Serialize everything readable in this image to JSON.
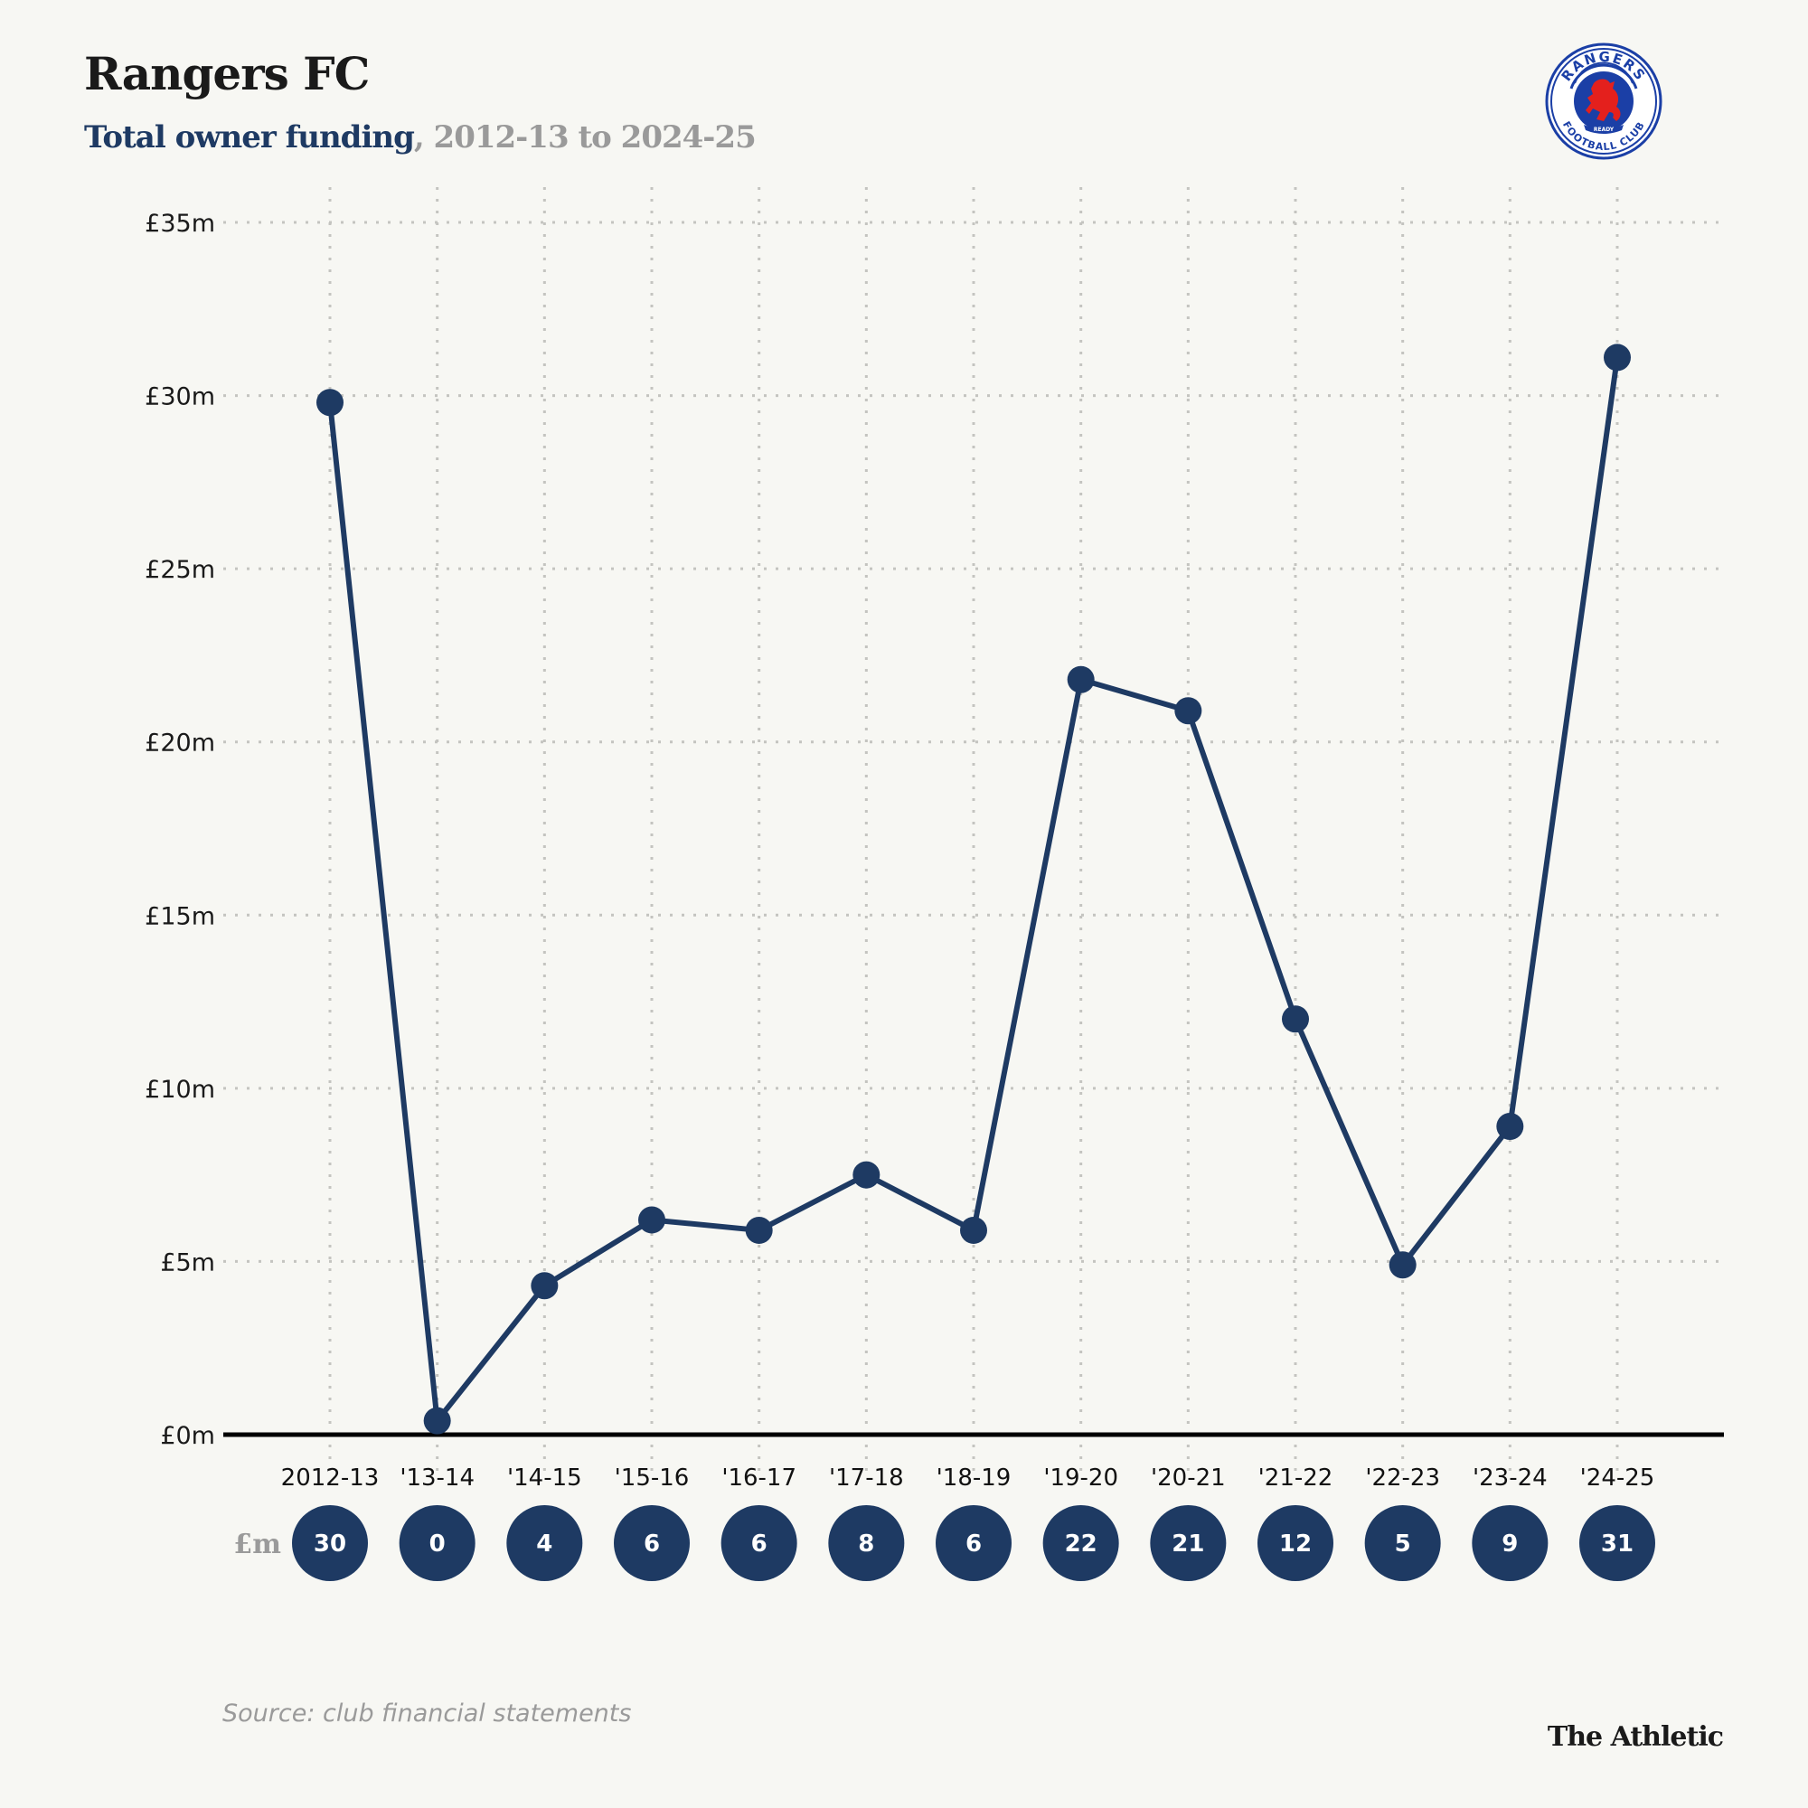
{
  "header": {
    "title": "Rangers FC",
    "subtitle_accent": "Total owner funding",
    "subtitle_comma": ",",
    "subtitle_range": " 2012-13 to 2024-25",
    "crest": {
      "label": "Rangers Football Club crest",
      "text_top": "RANGERS",
      "text_bottom": "FOOTBALL CLUB",
      "motto": "READY"
    }
  },
  "colors": {
    "line": "#1e3a63",
    "bubble": "#1e3a63",
    "grid": "#c4c4c0",
    "baseline": "#000000",
    "crest_blue": "#1b3fa6",
    "crest_red": "#e4201d"
  },
  "chart_data": {
    "type": "line",
    "title": "Total owner funding, 2012-13 to 2024-25",
    "xlabel": "",
    "ylabel": "",
    "categories": [
      "2012-13",
      "'13-14",
      "'14-15",
      "'15-16",
      "'16-17",
      "'17-18",
      "'18-19",
      "'19-20",
      "'20-21",
      "'21-22",
      "'22-23",
      "'23-24",
      "'24-25"
    ],
    "series": [
      {
        "name": "Total owner funding (£m)",
        "values": [
          29.8,
          0.4,
          4.3,
          6.2,
          5.9,
          7.5,
          5.9,
          21.8,
          20.9,
          12.0,
          4.9,
          8.9,
          31.1
        ]
      }
    ],
    "value_labels_unit": "£m",
    "value_labels": [
      "30",
      "0",
      "4",
      "6",
      "6",
      "8",
      "6",
      "22",
      "21",
      "12",
      "5",
      "9",
      "31"
    ],
    "ylim": [
      0,
      35
    ],
    "yticks": [
      0,
      5,
      10,
      15,
      20,
      25,
      30,
      35
    ],
    "ytick_labels": [
      "£0m",
      "£5m",
      "£10m",
      "£15m",
      "£20m",
      "£25m",
      "£30m",
      "£35m"
    ],
    "grid": true,
    "legend": "none"
  },
  "footer": {
    "source": "Source: club financial statements",
    "brand": "The Athletic"
  }
}
